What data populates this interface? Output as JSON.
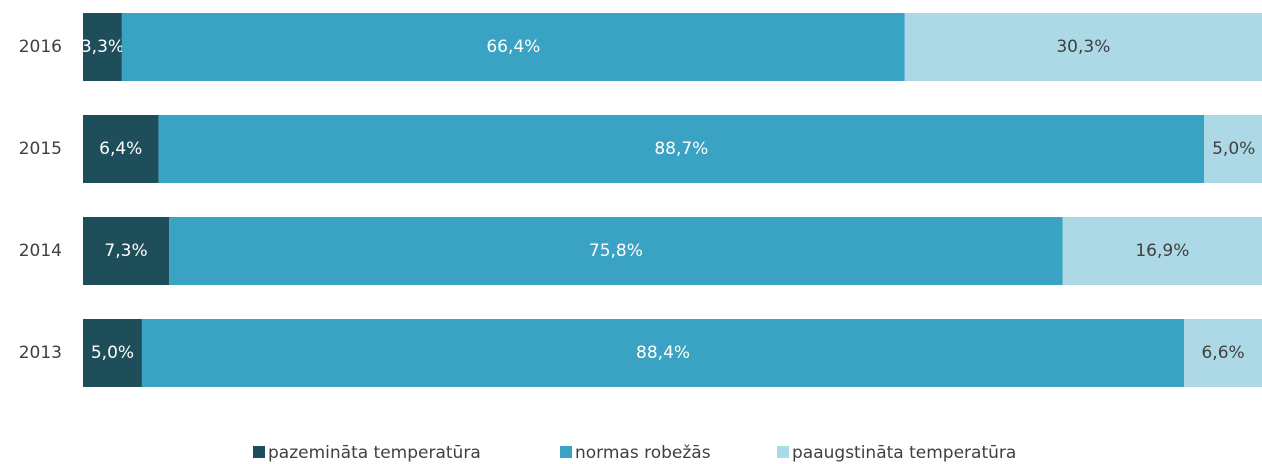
{
  "chart_data": {
    "type": "stacked-bar-horizontal",
    "categories": [
      "2016",
      "2015",
      "2014",
      "2013"
    ],
    "series": [
      {
        "name": "pazemināta temperatūra",
        "color": "#1f4e5b",
        "values": [
          3.3,
          6.4,
          7.3,
          5.0
        ],
        "value_labels": [
          "3,3%",
          "6,4%",
          "7,3%",
          "5,0%"
        ]
      },
      {
        "name": "normas robežās",
        "color": "#3aa2c2",
        "values": [
          66.4,
          88.7,
          75.8,
          88.4
        ],
        "value_labels": [
          "66,4%",
          "88,7%",
          "75,8%",
          "88,4%"
        ]
      },
      {
        "name": "paaugstināta temperatūra",
        "color": "#add8e6",
        "values": [
          30.3,
          5.0,
          16.9,
          6.6
        ],
        "value_labels": [
          "30,3%",
          "5,0%",
          "16,9%",
          "6,6%"
        ]
      }
    ],
    "xlim": [
      0,
      100
    ],
    "legend": "bottom"
  }
}
